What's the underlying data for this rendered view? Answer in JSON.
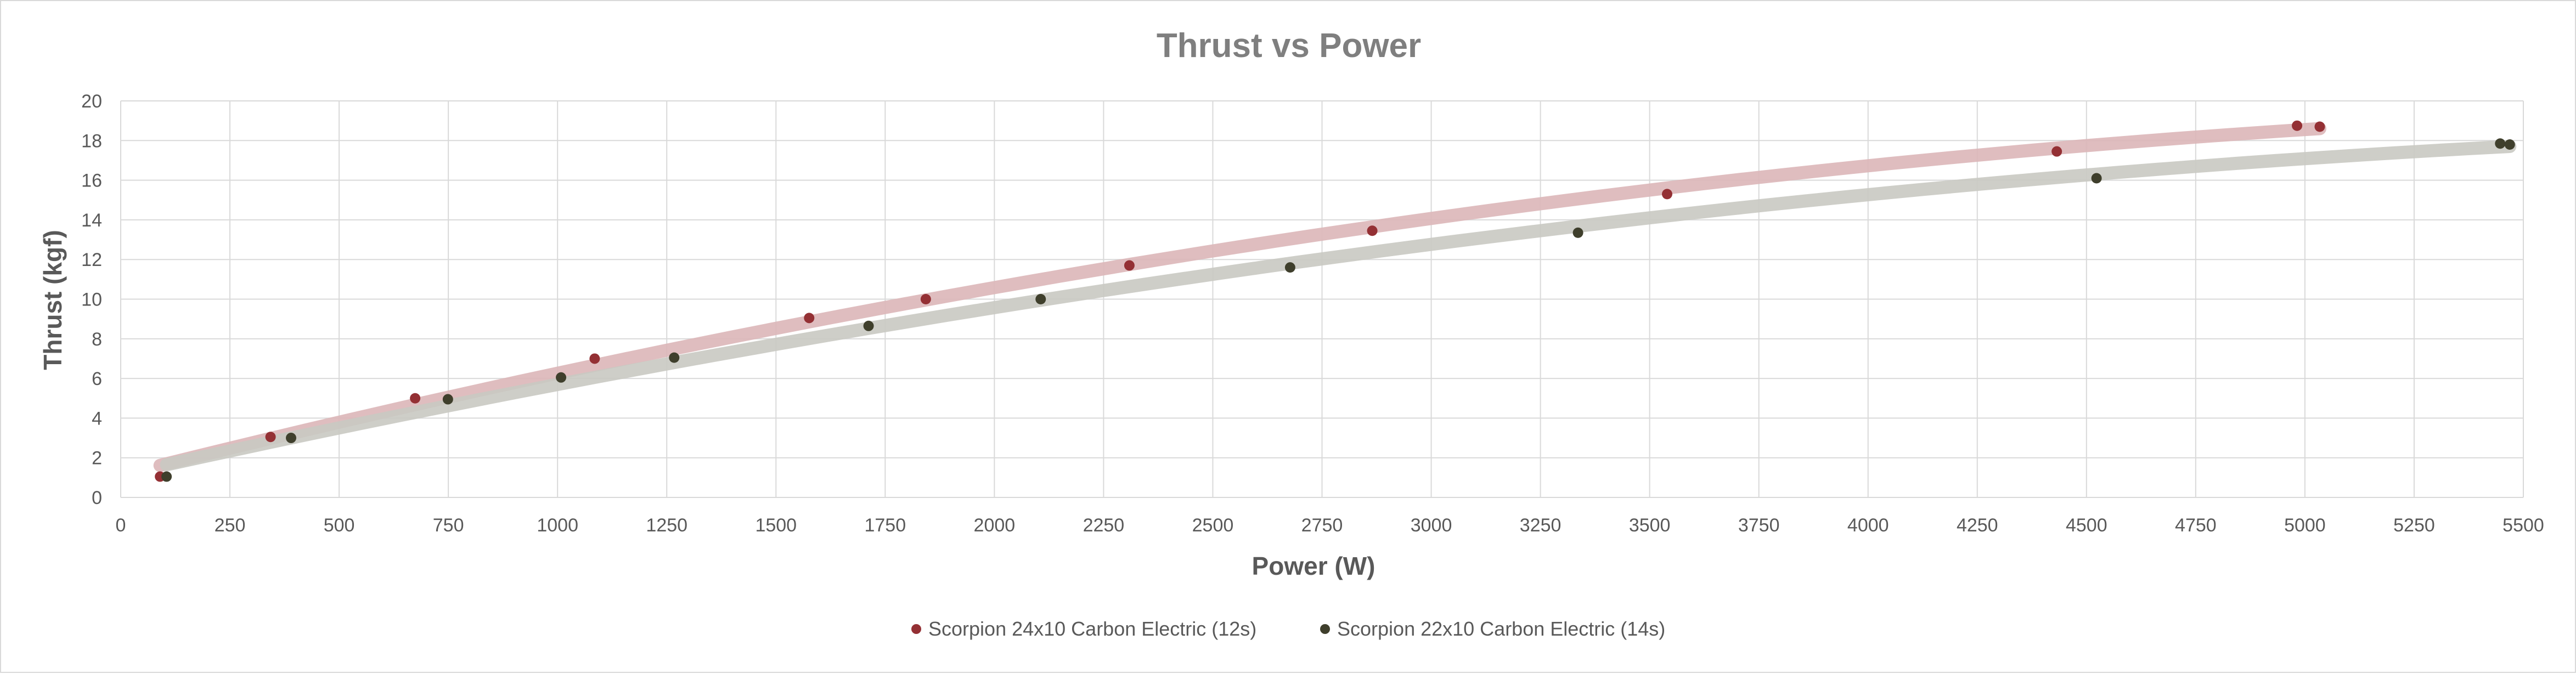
{
  "chart_data": {
    "type": "scatter",
    "title": "Thrust vs Power",
    "xlabel": "Power (W)",
    "ylabel": "Thrust (kgf)",
    "xlim": [
      0,
      5500
    ],
    "ylim": [
      0,
      20
    ],
    "xticks": [
      0,
      250,
      500,
      750,
      1000,
      1250,
      1500,
      1750,
      2000,
      2250,
      2500,
      2750,
      3000,
      3250,
      3500,
      3750,
      4000,
      4250,
      4500,
      4750,
      5000,
      5250,
      5500
    ],
    "yticks": [
      0,
      2,
      4,
      6,
      8,
      10,
      12,
      14,
      16,
      18,
      20
    ],
    "grid": true,
    "legend_position": "bottom",
    "series": [
      {
        "name": "Scorpion 24x10 Carbon Electric (12s)",
        "color": "#943034",
        "trend_color": "#dcb6b8",
        "x": [
          90,
          343,
          674,
          1085,
          1576,
          1843,
          2309,
          2865,
          3540,
          4432,
          4982,
          5034
        ],
        "y": [
          1.05,
          3.05,
          5.0,
          7.0,
          9.05,
          10.0,
          11.7,
          13.45,
          15.3,
          17.45,
          18.75,
          18.7
        ]
      },
      {
        "name": "Scorpion 22x10 Carbon Electric (14s)",
        "color": "#3f3f2c",
        "trend_color": "#c9c9c2",
        "x": [
          105,
          390,
          749,
          1008,
          1267,
          1712,
          2106,
          2677,
          3336,
          4523,
          5447,
          5469
        ],
        "y": [
          1.05,
          3.0,
          4.95,
          6.05,
          7.05,
          8.65,
          10.0,
          11.6,
          13.35,
          16.1,
          17.85,
          17.8
        ]
      }
    ]
  }
}
